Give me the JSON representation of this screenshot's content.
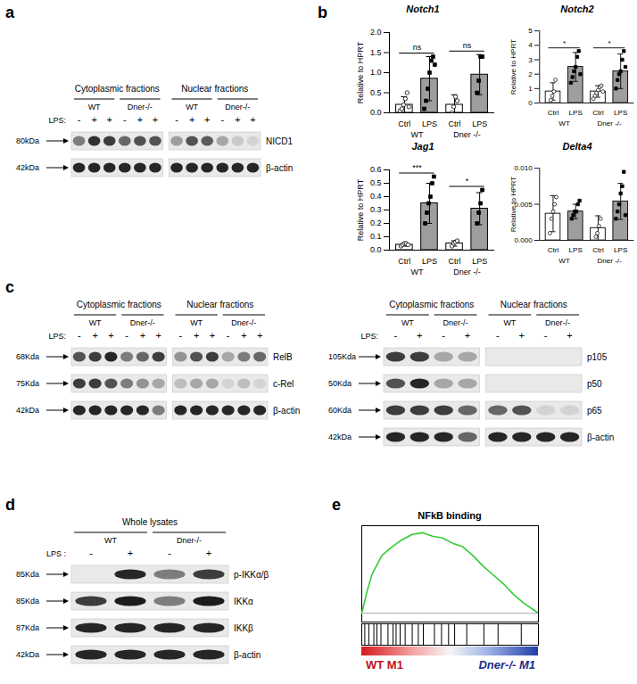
{
  "panel_labels": [
    "a",
    "b",
    "c",
    "d",
    "e"
  ],
  "blots": [
    {
      "panel": "a",
      "fractions": [
        {
          "label": "Cytoplasmic fractions",
          "lanes": 6
        },
        {
          "label": "Nuclear fractions",
          "lanes": 6
        }
      ],
      "genotypes": [
        {
          "label": "WT",
          "lanes": 3
        },
        {
          "label": "Dner-/-",
          "lanes": 3
        },
        {
          "label": "WT",
          "lanes": 3
        },
        {
          "label": "Dner-/-",
          "lanes": 3
        }
      ],
      "treatment_label": "LPS:",
      "treatment": [
        "-",
        "+",
        "+",
        "-",
        "+",
        "+",
        "-",
        "+",
        "+",
        "-",
        "+",
        "+"
      ],
      "rows": [
        {
          "size": "80kDa",
          "name": "NICD1",
          "intensity": [
            0.5,
            0.85,
            0.8,
            0.6,
            0.7,
            0.7,
            0.35,
            0.7,
            0.65,
            0.3,
            0.15,
            0.1
          ]
        },
        {
          "size": "42kDa",
          "name": "β-actin",
          "intensity": [
            0.9,
            0.9,
            0.9,
            0.9,
            0.9,
            0.9,
            0.9,
            0.9,
            0.9,
            0.9,
            0.9,
            0.9
          ]
        }
      ]
    },
    {
      "panel": "c",
      "fractions": [
        {
          "label": "Cytoplasmic fractions",
          "lanes": 6
        },
        {
          "label": "Nuclear fractions",
          "lanes": 6
        }
      ],
      "genotypes": [
        {
          "label": "WT",
          "lanes": 3
        },
        {
          "label": "Dner-/-",
          "lanes": 3
        },
        {
          "label": "WT",
          "lanes": 3
        },
        {
          "label": "Dner-/-",
          "lanes": 3
        }
      ],
      "treatment_label": "LPS:",
      "treatment": [
        "-",
        "+",
        "+",
        "-",
        "+",
        "+",
        "-",
        "+",
        "+",
        "-",
        "+",
        "+"
      ],
      "rows": [
        {
          "size": "68Kda",
          "name": "RelB",
          "intensity": [
            0.7,
            0.8,
            0.9,
            0.5,
            0.6,
            0.8,
            0.4,
            0.7,
            0.8,
            0.3,
            0.5,
            0.6
          ]
        },
        {
          "size": "75Kda",
          "name": "c-Rel",
          "intensity": [
            0.8,
            0.8,
            0.7,
            0.5,
            0.4,
            0.3,
            0.2,
            0.3,
            0.3,
            0.1,
            0.2,
            0.1
          ]
        },
        {
          "size": "42kDa",
          "name": "β-actin",
          "intensity": [
            0.9,
            0.9,
            0.9,
            0.9,
            0.9,
            0.5,
            0.9,
            0.9,
            0.9,
            0.9,
            0.9,
            0.9
          ]
        }
      ]
    },
    {
      "panel": "c",
      "fractions": [
        {
          "label": "Cytoplasmic fractions",
          "lanes": 4
        },
        {
          "label": "Nuclear fractions",
          "lanes": 4
        }
      ],
      "genotypes": [
        {
          "label": "WT",
          "lanes": 2
        },
        {
          "label": "Dner-/-",
          "lanes": 2
        },
        {
          "label": "WT",
          "lanes": 2
        },
        {
          "label": "Dner-/-",
          "lanes": 2
        }
      ],
      "treatment_label": "LPS:",
      "treatment": [
        "-",
        "+",
        "-",
        "+",
        "-",
        "+",
        "-",
        "+"
      ],
      "rows": [
        {
          "size": "105Kda",
          "name": "p105",
          "intensity": [
            0.8,
            0.8,
            0.3,
            0.3,
            0,
            0,
            0,
            0
          ]
        },
        {
          "size": "50Kda",
          "name": "p50",
          "intensity": [
            0.7,
            0.9,
            0.3,
            0.3,
            0,
            0,
            0,
            0
          ]
        },
        {
          "size": "60Kda",
          "name": "p65",
          "intensity": [
            0.8,
            0.8,
            0.8,
            0.6,
            0.6,
            0.7,
            0.1,
            0.1
          ]
        },
        {
          "size": "42kDa",
          "name": "β-actin",
          "intensity": [
            0.9,
            0.9,
            0.9,
            0.6,
            0.9,
            0.9,
            0.9,
            0.9
          ]
        }
      ]
    },
    {
      "panel": "d",
      "fractions": [
        {
          "label": "Whole lysates",
          "lanes": 4
        }
      ],
      "genotypes": [
        {
          "label": "WT",
          "lanes": 2
        },
        {
          "label": "Dner-/-",
          "lanes": 2
        }
      ],
      "treatment_label": "LPS :",
      "treatment": [
        "-",
        "+",
        "-",
        "+"
      ],
      "rows": [
        {
          "size": "85Kda",
          "name": "p-IKKα/β",
          "intensity": [
            0,
            0.9,
            0.5,
            0.8
          ]
        },
        {
          "size": "85Kda",
          "name": "IKKα",
          "intensity": [
            0.8,
            0.95,
            0.5,
            0.95
          ]
        },
        {
          "size": "87Kda",
          "name": "IKKβ",
          "intensity": [
            0.9,
            0.9,
            0.9,
            0.9
          ]
        },
        {
          "size": "42kDa",
          "name": "β-actin",
          "intensity": [
            0.9,
            0.9,
            0.9,
            0.9
          ]
        }
      ]
    }
  ],
  "chart_data": [
    {
      "type": "bar",
      "title": "Notch1",
      "ylabel": "Relative to HPRT",
      "categories": [
        "Ctrl",
        "LPS",
        "Ctrl",
        "LPS"
      ],
      "groups": [
        "WT",
        "WT",
        "Dner -/-",
        "Dner -/-"
      ],
      "values": [
        0.2,
        0.85,
        0.2,
        0.95
      ],
      "errors": [
        0.2,
        0.55,
        0.25,
        0.5
      ],
      "colors": [
        "#ffffff",
        "#9e9e9e",
        "#ffffff",
        "#9e9e9e"
      ],
      "points": [
        {
          "marker": "circle",
          "values": [
            0.05,
            0.1,
            0.2,
            0.35,
            0.5,
            0.15
          ]
        },
        {
          "marker": "square",
          "values": [
            0.1,
            0.3,
            0.6,
            1.0,
            1.3,
            1.4,
            1.2
          ]
        },
        {
          "marker": "circle",
          "values": [
            0.0,
            0.15,
            0.4,
            0.3
          ]
        },
        {
          "marker": "square",
          "values": [
            0.5,
            0.8,
            1.4,
            1.4
          ]
        }
      ],
      "significance": [
        "ns",
        "ns"
      ],
      "ylim": [
        0,
        2
      ],
      "yticks": [
        {
          "value": 0,
          "label": "0.0"
        },
        0.5,
        {
          "value": 1,
          "label": "1.0"
        },
        1.5,
        {
          "value": 2,
          "label": "2.0"
        }
      ]
    },
    {
      "type": "bar",
      "title": "Notch2",
      "ylabel": "Relative to HPRT",
      "categories": [
        "Ctrl",
        "LPS",
        "Ctrl",
        "LPS"
      ],
      "groups": [
        "WT",
        "WT",
        "Dner -/-",
        "Dner -/-"
      ],
      "values": [
        0.8,
        2.5,
        0.8,
        2.2
      ],
      "errors": [
        0.6,
        1.0,
        0.4,
        1.2
      ],
      "colors": [
        "#ffffff",
        "#9e9e9e",
        "#ffffff",
        "#9e9e9e"
      ],
      "points": [
        {
          "marker": "circle",
          "values": [
            0.2,
            0.5,
            0.8,
            1.6
          ]
        },
        {
          "marker": "square",
          "values": [
            1.4,
            1.8,
            2.2,
            2.5,
            3.2,
            3.6,
            2.0
          ]
        },
        {
          "marker": "circle",
          "values": [
            0.3,
            0.5,
            0.7,
            0.9,
            1.1,
            1.2,
            0.8
          ]
        },
        {
          "marker": "square",
          "values": [
            1.0,
            1.6,
            2.0,
            2.2,
            3.0,
            3.6,
            2.5
          ]
        }
      ],
      "significance": [
        "*",
        "*"
      ],
      "ylim": [
        0,
        5
      ],
      "yticks": [
        0,
        1,
        2,
        3,
        4,
        5
      ]
    },
    {
      "type": "bar",
      "title": "Jag1",
      "ylabel": "Relative to HPRT",
      "categories": [
        "Ctrl",
        "LPS",
        "Ctrl",
        "LPS"
      ],
      "groups": [
        "WT",
        "WT",
        "Dner -/-",
        "Dner -/-"
      ],
      "values": [
        0.04,
        0.35,
        0.05,
        0.31
      ],
      "errors": [
        0.01,
        0.15,
        0.02,
        0.12
      ],
      "colors": [
        "#ffffff",
        "#9e9e9e",
        "#ffffff",
        "#9e9e9e"
      ],
      "points": [
        {
          "marker": "circle",
          "values": [
            0.03,
            0.04,
            0.05,
            0.05,
            0.04
          ]
        },
        {
          "marker": "square",
          "values": [
            0.2,
            0.28,
            0.35,
            0.4,
            0.5,
            0.55
          ]
        },
        {
          "marker": "circle",
          "values": [
            0.03,
            0.05,
            0.06,
            0.07
          ]
        },
        {
          "marker": "square",
          "values": [
            0.2,
            0.28,
            0.35,
            0.45
          ]
        }
      ],
      "significance": [
        "***",
        "*"
      ],
      "ylim": [
        0,
        0.6
      ],
      "yticks": [
        {
          "value": 0,
          "label": "0.0"
        },
        0.1,
        0.2,
        0.3,
        0.4,
        0.5,
        0.6
      ]
    },
    {
      "type": "bar",
      "title": "Delta4",
      "ylabel": "Relative to HPRT",
      "categories": [
        "Ctrl",
        "LPS",
        "Ctrl",
        "LPS"
      ],
      "groups": [
        "WT",
        "WT",
        "Dner -/-",
        "Dner -/-"
      ],
      "values": [
        0.0037,
        0.004,
        0.0017,
        0.0054
      ],
      "errors": [
        0.0025,
        0.001,
        0.0017,
        0.0025
      ],
      "colors": [
        "#ffffff",
        "#9e9e9e",
        "#ffffff",
        "#9e9e9e"
      ],
      "points": [
        {
          "marker": "circle",
          "values": [
            0.001,
            0.003,
            0.004,
            0.005,
            0.006
          ]
        },
        {
          "marker": "square",
          "values": [
            0.003,
            0.0035,
            0.004,
            0.004,
            0.005,
            0.0055
          ]
        },
        {
          "marker": "circle",
          "values": [
            0.0005,
            0.001,
            0.002,
            0.003
          ]
        },
        {
          "marker": "square",
          "values": [
            0.003,
            0.004,
            0.005,
            0.0065,
            0.0075,
            0.0095,
            0.0035
          ]
        }
      ],
      "significance": [],
      "ylim": [
        0,
        0.01
      ],
      "yticks": [
        {
          "value": 0,
          "label": "0.000"
        },
        0.005,
        {
          "value": 0.01,
          "label": "0.010"
        }
      ]
    },
    {
      "type": "line",
      "title": "NFkB binding",
      "x": [
        0,
        500,
        1000,
        2000,
        3000,
        4000,
        5000,
        6000,
        7000,
        8000,
        9000,
        10000,
        11000,
        12000,
        13000,
        14000,
        15000,
        16000,
        17000,
        17500
      ],
      "values": [
        0,
        0.12,
        0.22,
        0.33,
        0.38,
        0.42,
        0.45,
        0.46,
        0.44,
        0.43,
        0.4,
        0.38,
        0.33,
        0.27,
        0.22,
        0.17,
        0.11,
        0.06,
        0.02,
        0
      ],
      "color": "#33cc33",
      "hits": [
        300,
        700,
        1200,
        1500,
        1900,
        2600,
        3100,
        3400,
        3800,
        4300,
        5000,
        5600,
        6100,
        7200,
        7900,
        8600,
        9200,
        10400,
        12100,
        13500,
        15800
      ],
      "phenotype_labels": [
        "WT M1",
        "Dner-/- M1"
      ],
      "xlim": [
        0,
        17500
      ],
      "ylim": [
        -0.05,
        0.5
      ],
      "tick_labels": false
    }
  ]
}
